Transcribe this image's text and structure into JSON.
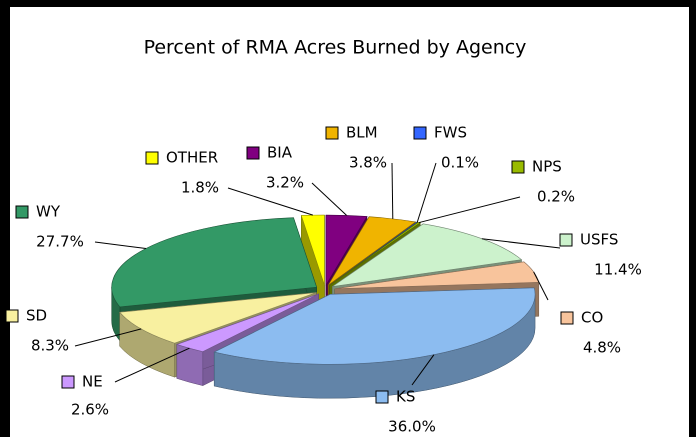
{
  "chart_data": {
    "type": "pie3d",
    "title": "Percent of RMA Acres Burned by Agency",
    "categories": [
      "BIA",
      "BLM",
      "FWS",
      "NPS",
      "USFS",
      "CO",
      "KS",
      "NE",
      "SD",
      "WY",
      "OTHER"
    ],
    "values": [
      3.2,
      3.8,
      0.1,
      0.2,
      11.4,
      4.8,
      36.0,
      2.6,
      8.3,
      27.7,
      1.8
    ],
    "value_labels": [
      "3.2%",
      "3.8%",
      "0.1%",
      "0.2%",
      "11.4%",
      "4.8%",
      "36.0%",
      "2.6%",
      "8.3%",
      "27.7%",
      "1.8%"
    ],
    "colors": [
      "#800080",
      "#f0b400",
      "#3366ff",
      "#99bb00",
      "#ccf2cc",
      "#f8c49c",
      "#8cbcf0",
      "#cc99ff",
      "#f8f0a0",
      "#339966",
      "#ffff00"
    ]
  }
}
